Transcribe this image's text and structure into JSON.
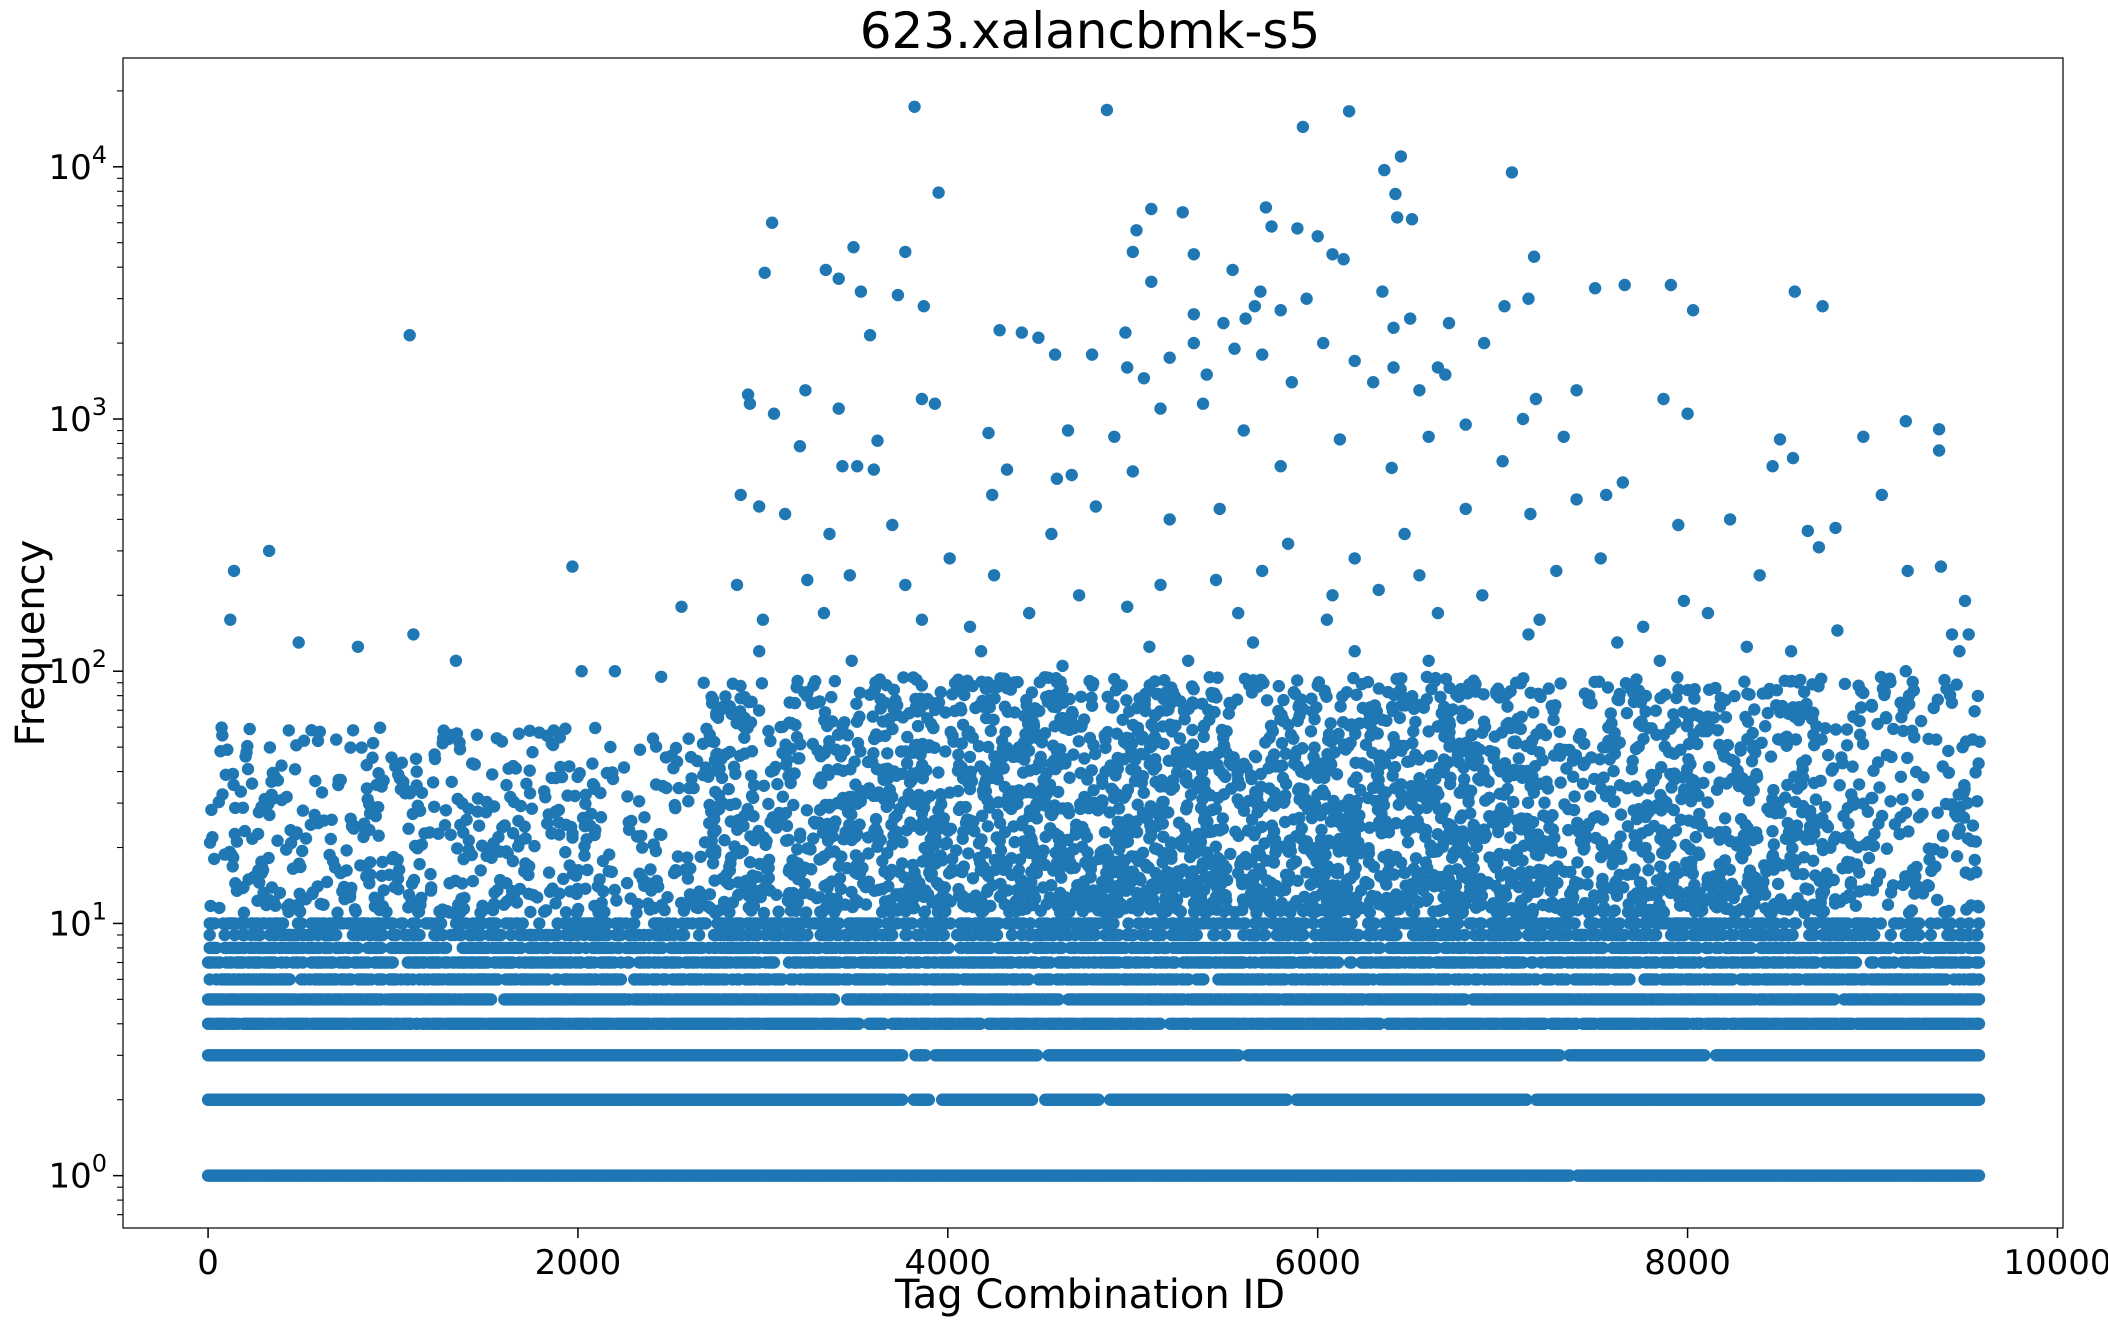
{
  "chart_data": {
    "type": "scatter",
    "title": "623.xalancbmk-s5",
    "xlabel": "Tag Combination ID",
    "ylabel": "Frequency",
    "x_range": [
      -460,
      10030
    ],
    "y_range": [
      0.62,
      27000
    ],
    "y_scale": "log",
    "x_ticks": [
      {
        "value": 0,
        "label": "0"
      },
      {
        "value": 2000,
        "label": "2000"
      },
      {
        "value": 4000,
        "label": "4000"
      },
      {
        "value": 6000,
        "label": "6000"
      },
      {
        "value": 8000,
        "label": "8000"
      },
      {
        "value": 10000,
        "label": "10000"
      }
    ],
    "y_ticks": [
      {
        "value": 1,
        "base": "10",
        "exp": "0"
      },
      {
        "value": 10,
        "base": "10",
        "exp": "1"
      },
      {
        "value": 100,
        "base": "10",
        "exp": "2"
      },
      {
        "value": 1000,
        "base": "10",
        "exp": "3"
      },
      {
        "value": 10000,
        "base": "10",
        "exp": "4"
      }
    ],
    "grid": false,
    "legend": "none",
    "marker_color": "#1f77b4",
    "x_data_max": 9580,
    "bands": [
      {
        "y": 1,
        "gaps": [
          [
            7370,
            7400
          ]
        ]
      },
      {
        "y": 2,
        "gaps": [
          [
            3760,
            3810
          ],
          [
            3900,
            3960
          ],
          [
            4460,
            4520
          ],
          [
            4820,
            4870
          ],
          [
            5840,
            5880
          ],
          [
            7130,
            7180
          ]
        ]
      },
      {
        "y": 3,
        "gaps": [
          [
            3760,
            3820
          ],
          [
            3880,
            3930
          ],
          [
            4490,
            4540
          ],
          [
            5580,
            5620
          ],
          [
            7310,
            7360
          ],
          [
            8100,
            8150
          ]
        ]
      },
      {
        "y": 4,
        "gaps": [
          [
            3520,
            3570
          ],
          [
            3660,
            3690
          ],
          [
            4180,
            4220
          ],
          [
            5160,
            5200
          ],
          [
            6340,
            6380
          ],
          [
            7230,
            7260
          ]
        ]
      },
      {
        "y": 5,
        "gaps": [
          [
            1550,
            1600
          ],
          [
            3400,
            3450
          ],
          [
            4600,
            4650
          ],
          [
            6800,
            6830
          ],
          [
            8800,
            8840
          ]
        ]
      },
      {
        "y": 6,
        "gaps": [
          [
            450,
            500
          ],
          [
            2240,
            2290
          ],
          [
            5390,
            5440
          ],
          [
            7700,
            7740
          ]
        ]
      },
      {
        "y": 7,
        "gaps": [
          [
            1000,
            1060
          ],
          [
            3080,
            3130
          ],
          [
            6120,
            6160
          ],
          [
            9120,
            9160
          ]
        ]
      },
      {
        "y": 8,
        "gaps": [
          [
            1300,
            1360
          ],
          [
            4010,
            4060
          ],
          [
            8350,
            8390
          ]
        ]
      },
      {
        "y": 9,
        "gaps": [
          [
            700,
            760
          ],
          [
            2600,
            2650
          ],
          [
            5930,
            5970
          ]
        ]
      },
      {
        "y": 10,
        "gaps": [
          [
            1800,
            1860
          ],
          [
            4900,
            4950
          ],
          [
            8600,
            8640
          ]
        ]
      }
    ],
    "points": [
      [
        3820,
        17300
      ],
      [
        4860,
        16800
      ],
      [
        6170,
        16600
      ],
      [
        5920,
        14400
      ],
      [
        6450,
        11000
      ],
      [
        6360,
        9700
      ],
      [
        7050,
        9500
      ],
      [
        3950,
        7900
      ],
      [
        6420,
        7800
      ],
      [
        5100,
        6800
      ],
      [
        5720,
        6900
      ],
      [
        3050,
        6000
      ],
      [
        6510,
        6200
      ],
      [
        6430,
        6300
      ],
      [
        5020,
        5600
      ],
      [
        5270,
        6600
      ],
      [
        5750,
        5800
      ],
      [
        5890,
        5700
      ],
      [
        6000,
        5300
      ],
      [
        3490,
        4800
      ],
      [
        3770,
        4600
      ],
      [
        5000,
        4600
      ],
      [
        5330,
        4500
      ],
      [
        6080,
        4500
      ],
      [
        6140,
        4300
      ],
      [
        7170,
        4400
      ],
      [
        3010,
        3800
      ],
      [
        3340,
        3900
      ],
      [
        3410,
        3600
      ],
      [
        3530,
        3200
      ],
      [
        3730,
        3100
      ],
      [
        5100,
        3500
      ],
      [
        5540,
        3900
      ],
      [
        5690,
        3200
      ],
      [
        5940,
        3000
      ],
      [
        5660,
        2800
      ],
      [
        5800,
        2700
      ],
      [
        6350,
        3200
      ],
      [
        7500,
        3300
      ],
      [
        7660,
        3400
      ],
      [
        7910,
        3400
      ],
      [
        8580,
        3200
      ],
      [
        8730,
        2800
      ],
      [
        3870,
        2800
      ],
      [
        7010,
        2800
      ],
      [
        5330,
        2600
      ],
      [
        5490,
        2400
      ],
      [
        5610,
        2500
      ],
      [
        6410,
        2300
      ],
      [
        6500,
        2500
      ],
      [
        6710,
        2400
      ],
      [
        8030,
        2700
      ],
      [
        1090,
        2150
      ],
      [
        3580,
        2150
      ],
      [
        4280,
        2250
      ],
      [
        4400,
        2200
      ],
      [
        4490,
        2100
      ],
      [
        4960,
        2200
      ],
      [
        5330,
        2000
      ],
      [
        5550,
        1900
      ],
      [
        6030,
        2000
      ],
      [
        6900,
        2000
      ],
      [
        7140,
        3000
      ],
      [
        4580,
        1800
      ],
      [
        4780,
        1800
      ],
      [
        5200,
        1750
      ],
      [
        5700,
        1800
      ],
      [
        6200,
        1700
      ],
      [
        4970,
        1600
      ],
      [
        5400,
        1500
      ],
      [
        6650,
        1600
      ],
      [
        5060,
        1450
      ],
      [
        6550,
        1300
      ],
      [
        7400,
        1300
      ],
      [
        2920,
        1250
      ],
      [
        3230,
        1300
      ],
      [
        5860,
        1400
      ],
      [
        6300,
        1400
      ],
      [
        6410,
        1600
      ],
      [
        6690,
        1500
      ],
      [
        2930,
        1150
      ],
      [
        3860,
        1200
      ],
      [
        3930,
        1150
      ],
      [
        5150,
        1100
      ],
      [
        5380,
        1150
      ],
      [
        7180,
        1200
      ],
      [
        7870,
        1200
      ],
      [
        9180,
        980
      ],
      [
        8950,
        850
      ],
      [
        9360,
        910
      ],
      [
        8000,
        1050
      ],
      [
        8500,
        830
      ],
      [
        3060,
        1050
      ],
      [
        3410,
        1100
      ],
      [
        3200,
        780
      ],
      [
        3620,
        820
      ],
      [
        4220,
        880
      ],
      [
        4900,
        850
      ],
      [
        5600,
        900
      ],
      [
        6120,
        830
      ],
      [
        6800,
        950
      ],
      [
        4650,
        900
      ],
      [
        6600,
        850
      ],
      [
        7110,
        1000
      ],
      [
        7330,
        850
      ],
      [
        9360,
        750
      ],
      [
        3510,
        650
      ],
      [
        3430,
        650
      ],
      [
        3600,
        630
      ],
      [
        4320,
        630
      ],
      [
        4590,
        580
      ],
      [
        4670,
        600
      ],
      [
        5000,
        620
      ],
      [
        5800,
        650
      ],
      [
        6400,
        640
      ],
      [
        7000,
        680
      ],
      [
        8460,
        650
      ],
      [
        8570,
        700
      ],
      [
        2880,
        500
      ],
      [
        2980,
        450
      ],
      [
        3120,
        420
      ],
      [
        3360,
        350
      ],
      [
        3700,
        380
      ],
      [
        4010,
        280
      ],
      [
        4240,
        500
      ],
      [
        4560,
        350
      ],
      [
        4800,
        450
      ],
      [
        5200,
        400
      ],
      [
        5470,
        440
      ],
      [
        5840,
        320
      ],
      [
        6200,
        280
      ],
      [
        6470,
        350
      ],
      [
        6800,
        440
      ],
      [
        7150,
        420
      ],
      [
        7400,
        480
      ],
      [
        7560,
        500
      ],
      [
        7650,
        560
      ],
      [
        7950,
        380
      ],
      [
        8230,
        400
      ],
      [
        8390,
        240
      ],
      [
        8650,
        360
      ],
      [
        8800,
        370
      ],
      [
        8710,
        310
      ],
      [
        9050,
        500
      ],
      [
        9190,
        250
      ],
      [
        9370,
        260
      ],
      [
        140,
        250
      ],
      [
        330,
        300
      ],
      [
        1970,
        260
      ],
      [
        2860,
        220
      ],
      [
        3240,
        230
      ],
      [
        3470,
        240
      ],
      [
        3770,
        220
      ],
      [
        4250,
        240
      ],
      [
        4710,
        200
      ],
      [
        5150,
        220
      ],
      [
        5450,
        230
      ],
      [
        5700,
        250
      ],
      [
        6080,
        200
      ],
      [
        6330,
        210
      ],
      [
        6550,
        240
      ],
      [
        6890,
        200
      ],
      [
        7290,
        250
      ],
      [
        7530,
        280
      ],
      [
        9500,
        190
      ],
      [
        2560,
        180
      ],
      [
        3000,
        160
      ],
      [
        3330,
        170
      ],
      [
        3860,
        160
      ],
      [
        4120,
        150
      ],
      [
        4440,
        170
      ],
      [
        4970,
        180
      ],
      [
        5570,
        170
      ],
      [
        6050,
        160
      ],
      [
        6650,
        170
      ],
      [
        7200,
        160
      ],
      [
        7760,
        150
      ],
      [
        7980,
        190
      ],
      [
        8110,
        170
      ],
      [
        8810,
        145
      ],
      [
        120,
        160
      ],
      [
        1110,
        140
      ],
      [
        490,
        130
      ],
      [
        810,
        125
      ],
      [
        1340,
        110
      ],
      [
        2020,
        100
      ],
      [
        2200,
        100
      ],
      [
        2980,
        120
      ],
      [
        3480,
        110
      ],
      [
        4180,
        120
      ],
      [
        4620,
        105
      ],
      [
        5090,
        125
      ],
      [
        5300,
        110
      ],
      [
        5650,
        130
      ],
      [
        6200,
        120
      ],
      [
        6600,
        110
      ],
      [
        7140,
        140
      ],
      [
        7620,
        130
      ],
      [
        7850,
        110
      ],
      [
        8320,
        125
      ],
      [
        8560,
        120
      ],
      [
        9430,
        140
      ],
      [
        9520,
        140
      ],
      [
        9470,
        120
      ],
      [
        9180,
        100
      ],
      [
        9400,
        85
      ],
      [
        8950,
        82
      ],
      [
        2450,
        95
      ],
      [
        2680,
        90
      ]
    ]
  }
}
